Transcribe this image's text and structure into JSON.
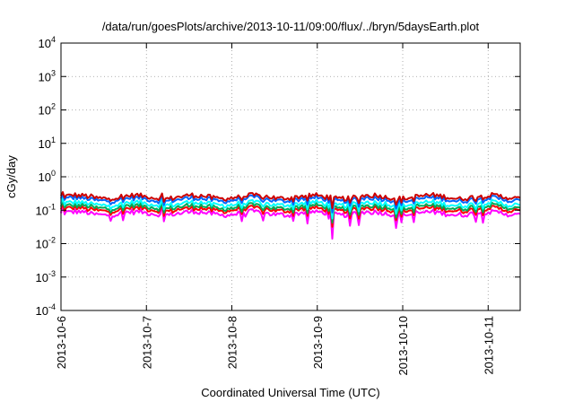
{
  "chart_data": {
    "type": "line",
    "title": "/data/run/goesPlots/archive/2013-10-11/09:00/flux/../bryn/5daysEarth.plot",
    "xlabel": "Coordinated Universal Time (UTC)",
    "ylabel": "cGy/day",
    "y_scale": "log",
    "ylim": [
      0.0001,
      10000
    ],
    "y_ticks": [
      {
        "value": 0.0001,
        "base": "10",
        "exp": "-4"
      },
      {
        "value": 0.001,
        "base": "10",
        "exp": "-3"
      },
      {
        "value": 0.01,
        "base": "10",
        "exp": "-2"
      },
      {
        "value": 0.1,
        "base": "10",
        "exp": "-1"
      },
      {
        "value": 1,
        "base": "10",
        "exp": "0"
      },
      {
        "value": 10,
        "base": "10",
        "exp": "1"
      },
      {
        "value": 100,
        "base": "10",
        "exp": "2"
      },
      {
        "value": 1000,
        "base": "10",
        "exp": "3"
      },
      {
        "value": 10000,
        "base": "10",
        "exp": "4"
      }
    ],
    "xlim": [
      "2013-10-06T00:00",
      "2013-10-11T09:00"
    ],
    "x_ticks": [
      "2013-10-6",
      "2013-10-7",
      "2013-10-8",
      "2013-10-9",
      "2013-10-10",
      "2013-10-11"
    ],
    "grid": true,
    "legend": "none",
    "series": [
      {
        "color": "#ff00ff",
        "level": 0.08
      },
      {
        "color": "#ff0000",
        "level": 0.105
      },
      {
        "color": "#00aa55",
        "level": 0.125
      },
      {
        "color": "#00ffff",
        "level": 0.155
      },
      {
        "color": "#0066ff",
        "level": 0.21
      },
      {
        "color": "#cc0000",
        "level": 0.25
      }
    ]
  }
}
